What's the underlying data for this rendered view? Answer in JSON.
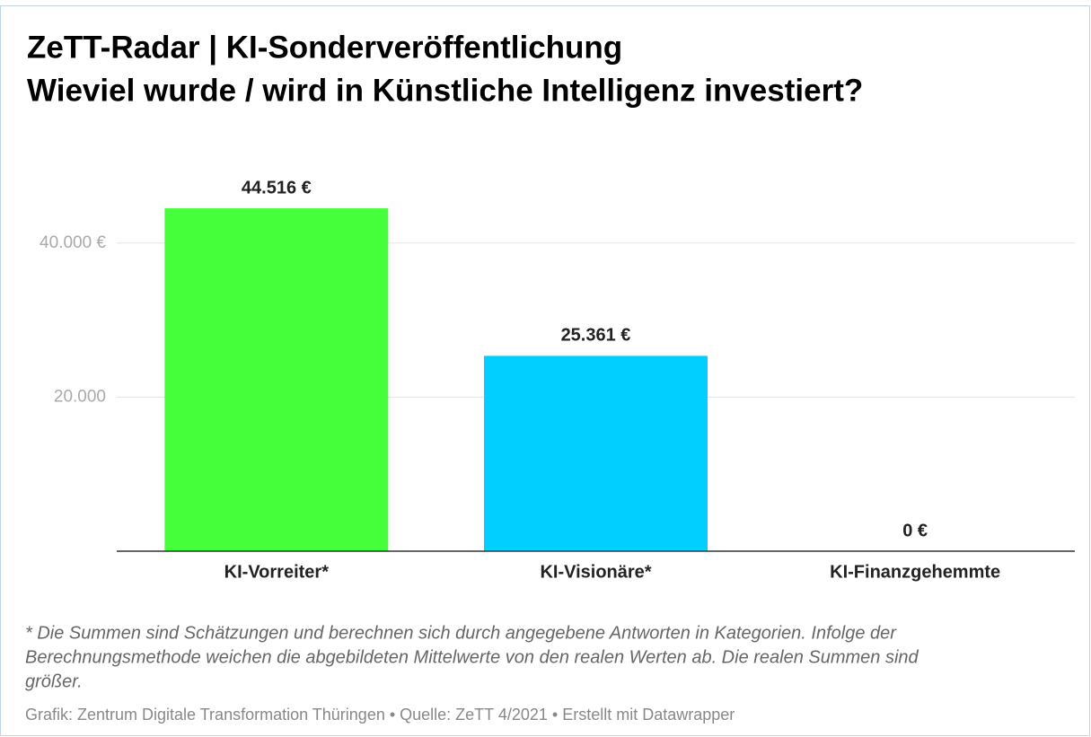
{
  "chart_data": {
    "type": "bar",
    "title": "ZeTT-Radar | KI-Sonderveröffentlichung",
    "subtitle": "Wieviel wurde / wird in Künstliche Intelligenz investiert?",
    "categories": [
      "KI-Vorreiter*",
      "KI-Visionäre*",
      "KI-Finanzgehemmte"
    ],
    "values": [
      44516,
      25361,
      0
    ],
    "value_labels": [
      "44.516 €",
      "25.361 €",
      "0 €"
    ],
    "colors": [
      "#45ff3a",
      "#00cfff",
      "#cccccc"
    ],
    "ylim": [
      0,
      50000
    ],
    "yticks": [
      {
        "value": 20000,
        "label": "20.000"
      },
      {
        "value": 40000,
        "label": "40.000 €"
      }
    ],
    "grid": true,
    "notes": [
      "* Die Summen sind Schätzungen und berechnen sich durch angegebene Antworten in Kategorien. Infolge der",
      "Berechnungsmethode weichen die abgebildeten Mittelwerte von den realen Werten ab. Die realen Summen sind",
      "größer."
    ],
    "source": "Grafik: Zentrum Digitale Transformation Thüringen • Quelle: ZeTT 4/2021 • Erstellt mit Datawrapper"
  }
}
